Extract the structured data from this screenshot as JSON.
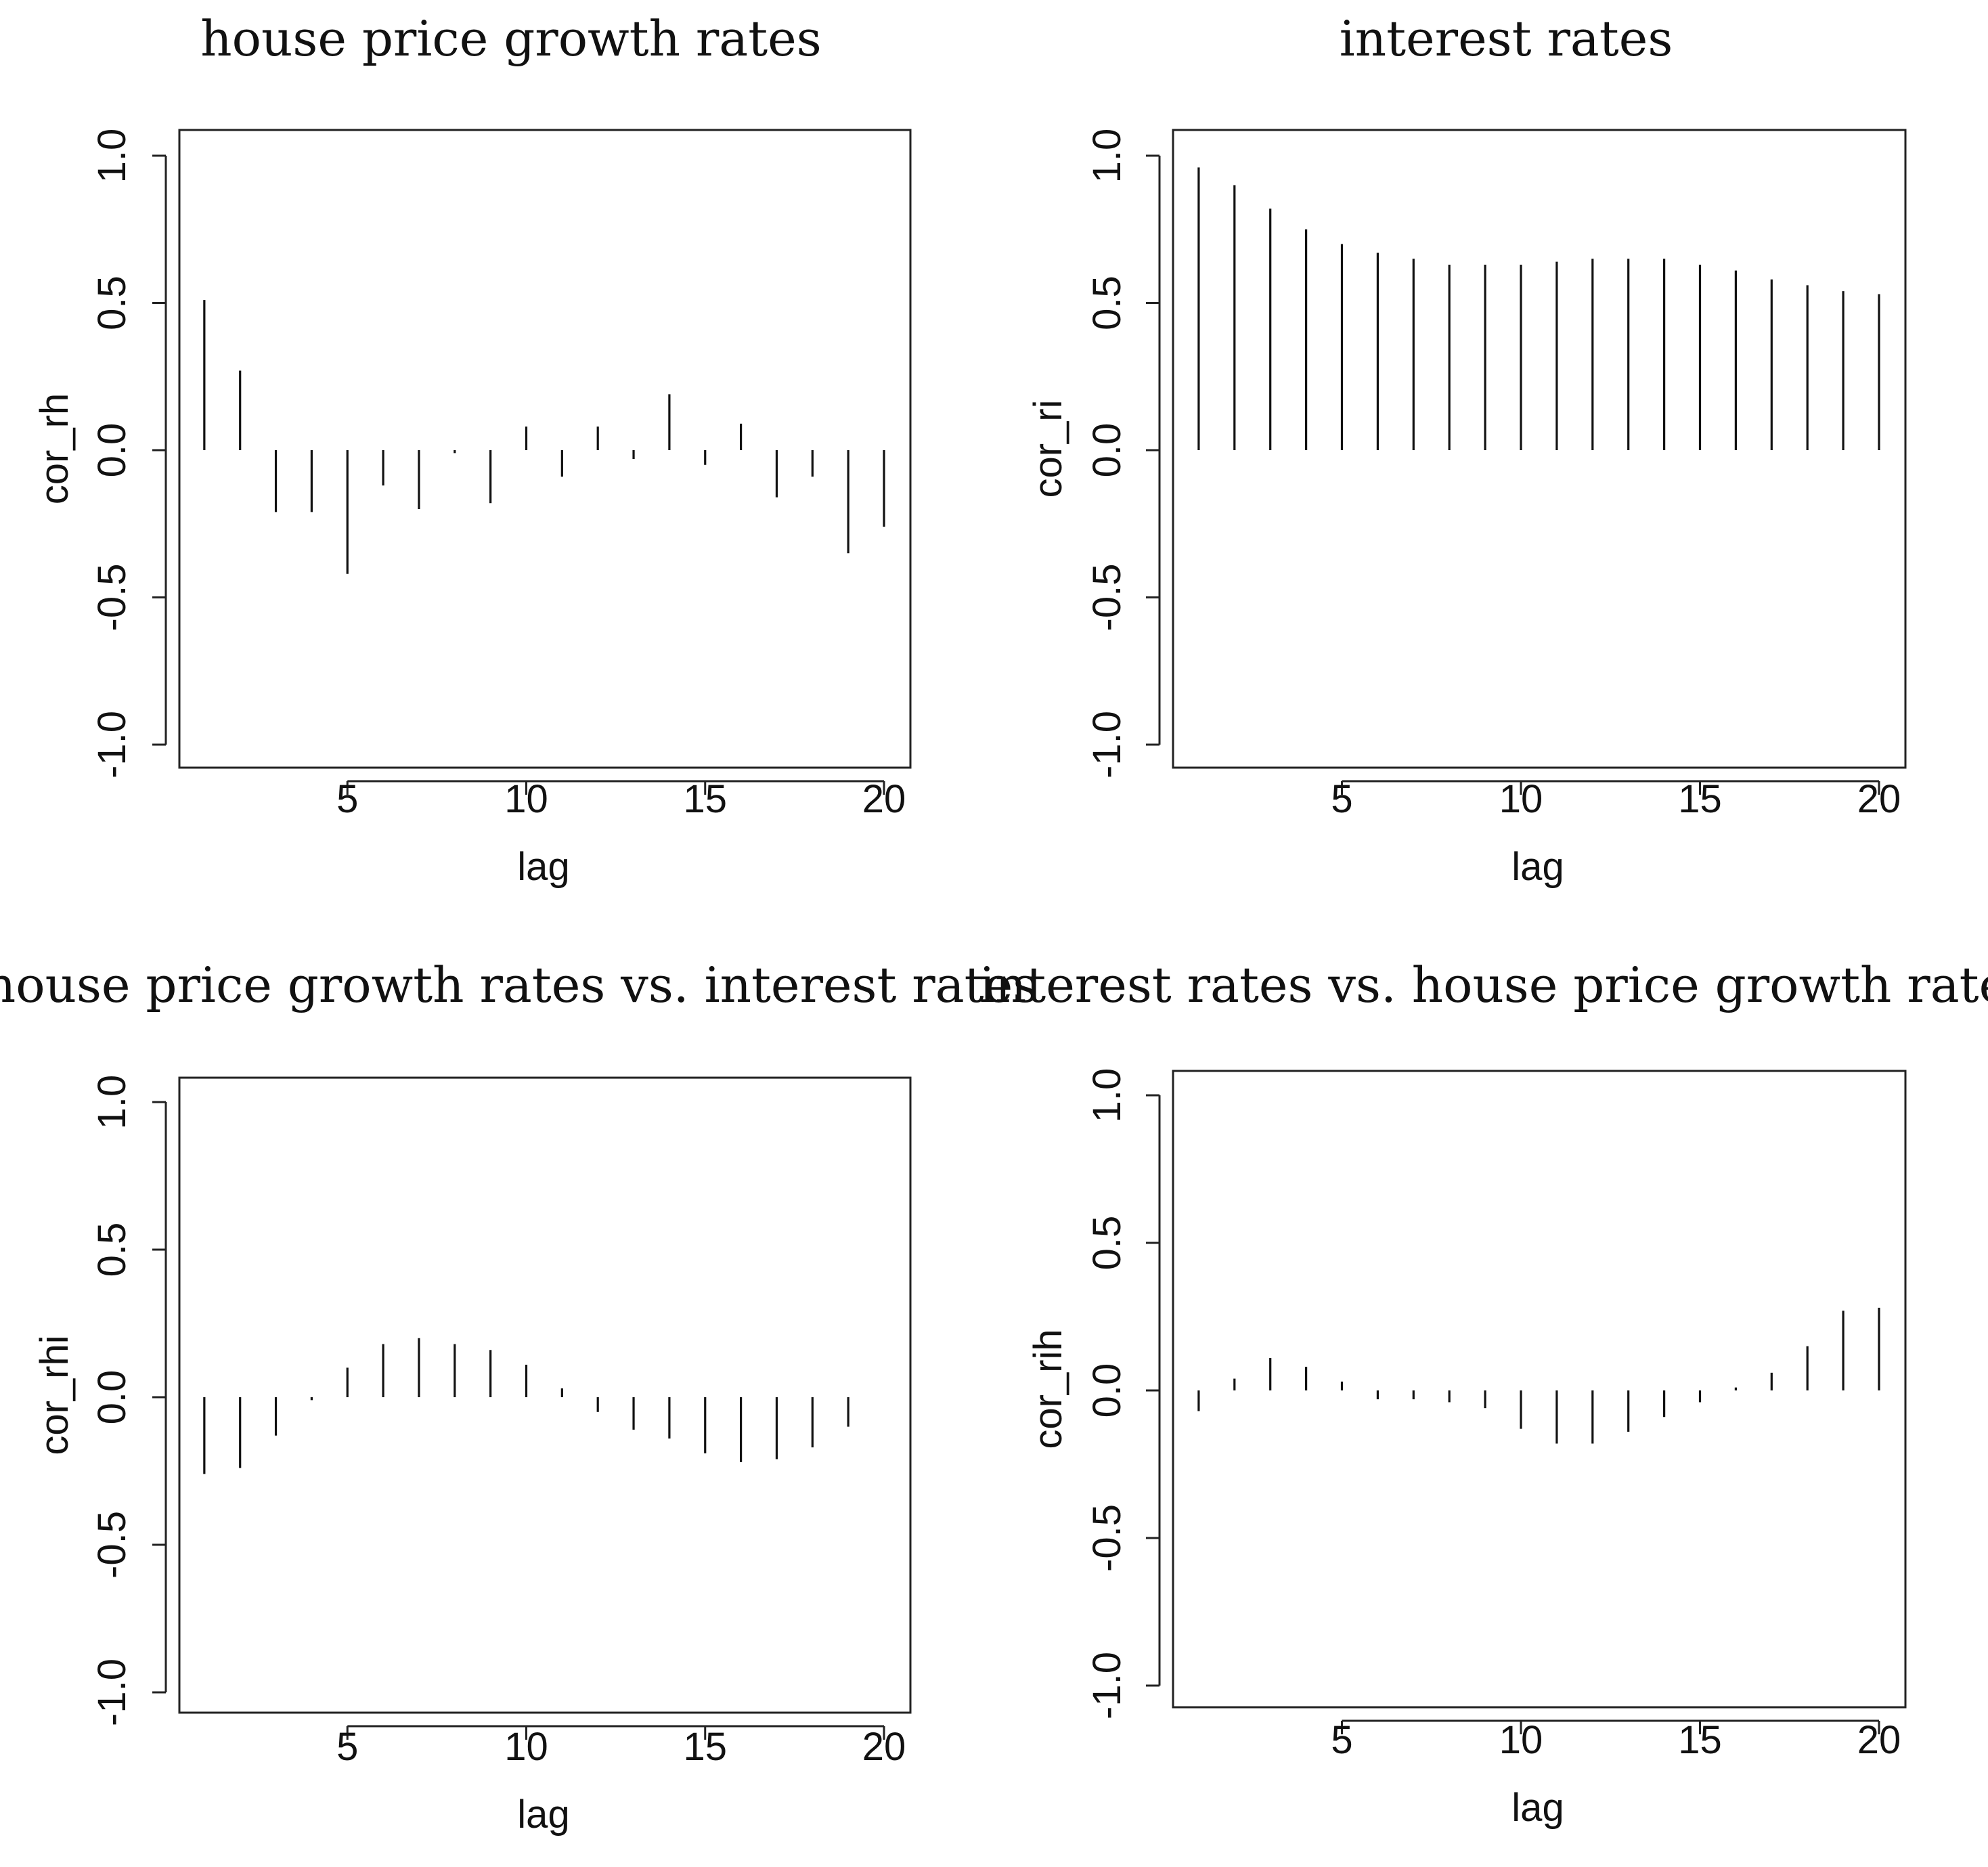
{
  "chart_data": [
    {
      "type": "bar",
      "id": "hp",
      "title": "house price growth rates",
      "xlabel": "lag",
      "ylabel": "cor_rh",
      "ylim": [
        -1.0,
        1.0
      ],
      "xlim": [
        0,
        20
      ],
      "x_ticks": [
        5,
        10,
        15,
        20
      ],
      "y_ticks": [
        "-1.0",
        "-0.5",
        "0.0",
        "0.5",
        "1.0"
      ],
      "lags": [
        1,
        2,
        3,
        4,
        5,
        6,
        7,
        8,
        9,
        10,
        11,
        12,
        13,
        14,
        15,
        16,
        17,
        18,
        19,
        20
      ],
      "values": [
        0.51,
        0.27,
        -0.21,
        -0.21,
        -0.42,
        -0.12,
        -0.2,
        -0.01,
        -0.18,
        0.08,
        -0.09,
        0.08,
        -0.03,
        0.19,
        -0.05,
        0.09,
        -0.16,
        -0.09,
        -0.35,
        -0.26
      ]
    },
    {
      "type": "bar",
      "id": "ir",
      "title": "interest rates",
      "xlabel": "lag",
      "ylabel": "cor_ri",
      "ylim": [
        -1.0,
        1.0
      ],
      "xlim": [
        0,
        20
      ],
      "x_ticks": [
        5,
        10,
        15,
        20
      ],
      "y_ticks": [
        "-1.0",
        "-0.5",
        "0.0",
        "0.5",
        "1.0"
      ],
      "lags": [
        1,
        2,
        3,
        4,
        5,
        6,
        7,
        8,
        9,
        10,
        11,
        12,
        13,
        14,
        15,
        16,
        17,
        18,
        19,
        20
      ],
      "values": [
        0.96,
        0.9,
        0.82,
        0.75,
        0.7,
        0.67,
        0.65,
        0.63,
        0.63,
        0.63,
        0.64,
        0.65,
        0.65,
        0.65,
        0.63,
        0.61,
        0.58,
        0.56,
        0.54,
        0.53
      ]
    },
    {
      "type": "bar",
      "id": "hp-vs-ir",
      "title": "house price growth rates vs. interest rates",
      "xlabel": "lag",
      "ylabel": "cor_rhi",
      "ylim": [
        -1.0,
        1.0
      ],
      "xlim": [
        0,
        20
      ],
      "x_ticks": [
        5,
        10,
        15,
        20
      ],
      "y_ticks": [
        "-1.0",
        "-0.5",
        "0.0",
        "0.5",
        "1.0"
      ],
      "lags": [
        1,
        2,
        3,
        4,
        5,
        6,
        7,
        8,
        9,
        10,
        11,
        12,
        13,
        14,
        15,
        16,
        17,
        18,
        19,
        20
      ],
      "values": [
        -0.26,
        -0.24,
        -0.13,
        -0.01,
        0.1,
        0.18,
        0.2,
        0.18,
        0.16,
        0.11,
        0.03,
        -0.05,
        -0.11,
        -0.14,
        -0.19,
        -0.22,
        -0.21,
        -0.17,
        -0.1,
        0.0
      ]
    },
    {
      "type": "bar",
      "id": "ir-vs-hp",
      "title": "interest rates vs. house price growth rates",
      "xlabel": "lag",
      "ylabel": "cor_rih",
      "ylim": [
        -1.0,
        1.0
      ],
      "xlim": [
        0,
        20
      ],
      "x_ticks": [
        5,
        10,
        15,
        20
      ],
      "y_ticks": [
        "-1.0",
        "-0.5",
        "0.0",
        "0.5",
        "1.0"
      ],
      "lags": [
        1,
        2,
        3,
        4,
        5,
        6,
        7,
        8,
        9,
        10,
        11,
        12,
        13,
        14,
        15,
        16,
        17,
        18,
        19,
        20
      ],
      "values": [
        -0.07,
        0.04,
        0.11,
        0.08,
        0.03,
        -0.03,
        -0.03,
        -0.04,
        -0.06,
        -0.13,
        -0.18,
        -0.18,
        -0.14,
        -0.09,
        -0.04,
        0.01,
        0.06,
        0.15,
        0.27,
        0.28
      ]
    }
  ]
}
